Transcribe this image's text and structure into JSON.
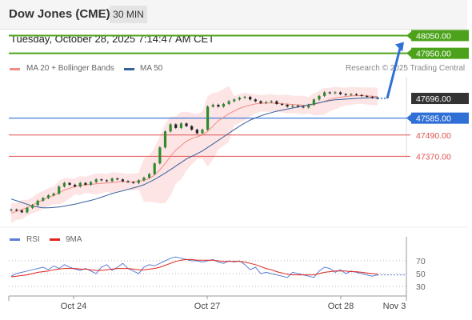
{
  "header": {
    "title": "Dow Jones (CME)",
    "timeframe": "30 MIN"
  },
  "datetime": "Tuesday, October 28, 2025 7:14:47 AM CET",
  "legend": {
    "items": [
      {
        "label": "MA 20 + Bollinger Bands",
        "color": "#f28b82"
      },
      {
        "label": "MA 50",
        "color": "#35609a"
      }
    ],
    "credit": "Research © 2025 Trading Central"
  },
  "chart_data": [
    {
      "type": "candlestick",
      "title": "",
      "x_tick_labels": [
        "Oct 24",
        "Oct 27",
        "Oct 28",
        "Nov 3"
      ],
      "ylim": [
        47000,
        48150
      ],
      "levels": [
        {
          "label": "48050.00",
          "value": 48050,
          "color": "#4ca31b",
          "kind": "resistance"
        },
        {
          "label": "47950.00",
          "value": 47950,
          "color": "#4ca31b",
          "kind": "resistance"
        },
        {
          "label": "47696.00",
          "value": 47696,
          "color": "#333333",
          "kind": "last-price"
        },
        {
          "label": "47585.00",
          "value": 47585,
          "color": "#2f6fd6",
          "kind": "pivot"
        },
        {
          "label": "47490.00",
          "value": 47490,
          "color": "#e05050",
          "kind": "support"
        },
        {
          "label": "47370.00",
          "value": 47370,
          "color": "#e05050",
          "kind": "support"
        }
      ],
      "forecast_target": 48050,
      "series": [
        {
          "name": "Price",
          "values": [
            47070,
            47065,
            47055,
            47080,
            47095,
            47120,
            47135,
            47150,
            47160,
            47200,
            47220,
            47210,
            47200,
            47220,
            47210,
            47225,
            47240,
            47235,
            47230,
            47245,
            47240,
            47230,
            47225,
            47220,
            47235,
            47250,
            47270,
            47330,
            47420,
            47510,
            47550,
            47530,
            47555,
            47540,
            47520,
            47500,
            47520,
            47650,
            47660,
            47650,
            47665,
            47680,
            47690,
            47700,
            47705,
            47690,
            47680,
            47670,
            47675,
            47680,
            47665,
            47660,
            47650,
            47655,
            47650,
            47645,
            47660,
            47690,
            47710,
            47730,
            47725,
            47730,
            47720,
            47715,
            47720,
            47715,
            47710,
            47705,
            47700,
            47696
          ]
        },
        {
          "name": "MA 20",
          "values": [
            47050,
            47060,
            47070,
            47080,
            47095,
            47110,
            47125,
            47140,
            47150,
            47165,
            47180,
            47190,
            47200,
            47205,
            47210,
            47212,
            47215,
            47218,
            47220,
            47222,
            47225,
            47228,
            47226,
            47225,
            47230,
            47235,
            47245,
            47265,
            47295,
            47330,
            47370,
            47405,
            47430,
            47455,
            47470,
            47480,
            47490,
            47510,
            47540,
            47570,
            47590,
            47610,
            47625,
            47640,
            47650,
            47658,
            47665,
            47668,
            47670,
            47670,
            47668,
            47666,
            47664,
            47662,
            47660,
            47658,
            47658,
            47662,
            47670,
            47680,
            47690,
            47698,
            47703,
            47707,
            47710,
            47712,
            47712,
            47710,
            47708,
            47706
          ]
        },
        {
          "name": "MA 50",
          "values": [
            47130,
            47120,
            47110,
            47100,
            47090,
            47085,
            47080,
            47080,
            47082,
            47085,
            47090,
            47095,
            47100,
            47108,
            47115,
            47122,
            47130,
            47140,
            47150,
            47160,
            47168,
            47176,
            47184,
            47192,
            47200,
            47210,
            47225,
            47240,
            47258,
            47276,
            47295,
            47315,
            47335,
            47355,
            47370,
            47385,
            47400,
            47420,
            47440,
            47460,
            47480,
            47500,
            47520,
            47540,
            47558,
            47574,
            47586,
            47598,
            47608,
            47616,
            47624,
            47630,
            47636,
            47642,
            47648,
            47654,
            47660,
            47666,
            47672,
            47678,
            47684,
            47688,
            47690,
            47692,
            47694,
            47696,
            47698,
            47699,
            47700,
            47700
          ]
        }
      ]
    },
    {
      "type": "line",
      "title": "",
      "ylim": [
        20,
        80
      ],
      "y_tick_labels": [
        "70",
        "50",
        "30"
      ],
      "series": [
        {
          "name": "RSI",
          "color": "#5b7ed6",
          "values": [
            46,
            50,
            52,
            54,
            56,
            58,
            60,
            56,
            62,
            58,
            64,
            60,
            57,
            55,
            58,
            54,
            50,
            60,
            64,
            55,
            60,
            66,
            58,
            54,
            50,
            60,
            64,
            62,
            66,
            70,
            74,
            76,
            74,
            72,
            70,
            70,
            68,
            70,
            72,
            68,
            66,
            70,
            68,
            70,
            64,
            56,
            60,
            50,
            52,
            50,
            48,
            46,
            44,
            52,
            50,
            48,
            46,
            44,
            54,
            60,
            58,
            52,
            56,
            50,
            54,
            52,
            50,
            48,
            46,
            48
          ]
        },
        {
          "name": "9MA",
          "color": "#e0241b",
          "values": [
            45,
            46,
            47,
            48,
            50,
            52,
            53,
            54,
            56,
            57,
            58,
            58,
            58,
            57,
            57,
            56,
            55,
            55,
            56,
            57,
            58,
            58,
            58,
            57,
            56,
            56,
            57,
            58,
            60,
            63,
            66,
            69,
            71,
            72,
            72,
            71,
            71,
            71,
            71,
            70,
            69,
            69,
            69,
            69,
            68,
            66,
            64,
            61,
            58,
            56,
            53,
            51,
            49,
            48,
            48,
            48,
            48,
            48,
            50,
            52,
            53,
            54,
            54,
            54,
            53,
            53,
            52,
            51,
            50,
            49
          ]
        }
      ]
    }
  ]
}
